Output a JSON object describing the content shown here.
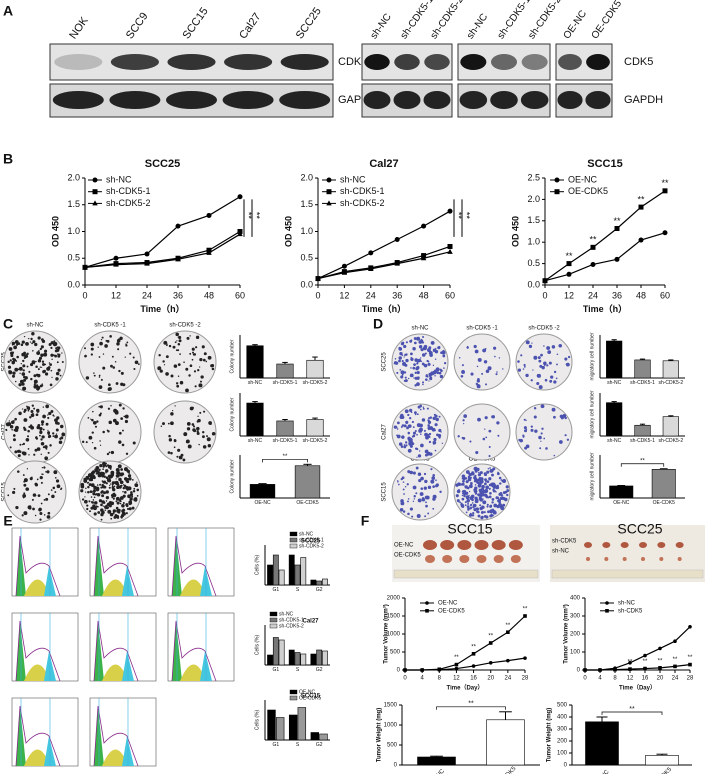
{
  "panel_labels": [
    "A",
    "B",
    "C",
    "D",
    "E",
    "F"
  ],
  "blots": {
    "left_lanes": [
      "NOK",
      "SCC9",
      "SCC15",
      "Cal27",
      "SCC25"
    ],
    "right_lanes": [
      "sh-NC",
      "sh-CDK5-1",
      "sh-CDK5-2",
      "sh-NC",
      "sh-CDK5-1",
      "sh-CDK5-2",
      "OE-NC",
      "OE-CDK5"
    ],
    "proteins": [
      "CDK5",
      "GAPDH"
    ]
  },
  "colony": {
    "columns": [
      "sh-NC",
      "sh-CDK5 -1",
      "sh-CDK5 -2"
    ],
    "oe_columns": [
      "OE-NC",
      "OE-CDK5"
    ],
    "rows": [
      "SCC25",
      "Cal27",
      "SCC15"
    ]
  },
  "migration": {
    "columns": [
      "sh-NC",
      "sh-CDK5 -1",
      "sh-CDK5 -2"
    ],
    "oe_columns": [
      "OE-NC",
      "OE-CDK5"
    ],
    "rows": [
      "SCC25",
      "Cal27",
      "SCC15"
    ]
  },
  "tumor": {
    "titles": [
      "SCC15",
      "SCC25"
    ],
    "left_labels": [
      "OE-NC",
      "OE-CDK5"
    ],
    "right_labels": [
      "sh-CDK5",
      "sh-NC"
    ]
  },
  "chart_data": [
    {
      "type": "line",
      "title": "SCC25",
      "xlabel": "Time（h）",
      "ylabel": "OD 450",
      "x": [
        0,
        12,
        24,
        36,
        48,
        60
      ],
      "xlim": [
        0,
        60
      ],
      "xticks": [
        0,
        12,
        24,
        36,
        48,
        60
      ],
      "ylim": [
        0,
        2
      ],
      "yticks": [
        {
          "value": 0,
          "label": "0.0"
        },
        0.5,
        {
          "value": 1,
          "label": "1.0"
        },
        1.5,
        {
          "value": 2,
          "label": "2.0"
        }
      ],
      "series": [
        {
          "name": "sh-NC",
          "color": "#000000",
          "marker": "circle",
          "values": [
            0.33,
            0.5,
            0.58,
            1.1,
            1.3,
            1.65
          ]
        },
        {
          "name": "sh-CDK5-1",
          "color": "#000000",
          "marker": "square",
          "values": [
            0.33,
            0.4,
            0.42,
            0.5,
            0.65,
            1.0
          ]
        },
        {
          "name": "sh-CDK5-2",
          "color": "#000000",
          "marker": "triangle",
          "values": [
            0.33,
            0.38,
            0.4,
            0.48,
            0.6,
            0.95
          ]
        }
      ],
      "annotations": [
        "**",
        "**"
      ]
    },
    {
      "type": "line",
      "title": "Cal27",
      "xlabel": "Time（h）",
      "ylabel": "OD 450",
      "x": [
        0,
        12,
        24,
        36,
        48,
        60
      ],
      "xlim": [
        0,
        60
      ],
      "xticks": [
        0,
        12,
        24,
        36,
        48,
        60
      ],
      "ylim": [
        0,
        2
      ],
      "yticks": [
        {
          "value": 0,
          "label": "0.0"
        },
        0.5,
        {
          "value": 1,
          "label": "1.0"
        },
        1.5,
        {
          "value": 2,
          "label": "2.0"
        }
      ],
      "series": [
        {
          "name": "sh-NC",
          "color": "#000000",
          "marker": "circle",
          "values": [
            0.12,
            0.35,
            0.6,
            0.85,
            1.1,
            1.38
          ]
        },
        {
          "name": "sh-CDK5-1",
          "color": "#000000",
          "marker": "square",
          "values": [
            0.12,
            0.25,
            0.32,
            0.42,
            0.55,
            0.72
          ]
        },
        {
          "name": "sh-CDK5-2",
          "color": "#000000",
          "marker": "triangle",
          "values": [
            0.12,
            0.23,
            0.3,
            0.4,
            0.5,
            0.62
          ]
        }
      ],
      "annotations": [
        "**",
        "**"
      ]
    },
    {
      "type": "line",
      "title": "SCC15",
      "xlabel": "Time（h）",
      "ylabel": "OD 450",
      "x": [
        0,
        12,
        24,
        36,
        48,
        60
      ],
      "xlim": [
        0,
        60
      ],
      "xticks": [
        0,
        12,
        24,
        36,
        48,
        60
      ],
      "ylim": [
        0,
        2.5
      ],
      "yticks": [
        {
          "value": 0,
          "label": "0.0"
        },
        0.5,
        {
          "value": 1,
          "label": "1.0"
        },
        1.5,
        {
          "value": 2,
          "label": "2.0"
        },
        2.5
      ],
      "series": [
        {
          "name": "OE-NC",
          "color": "#000000",
          "marker": "circle",
          "values": [
            0.1,
            0.25,
            0.48,
            0.6,
            1.05,
            1.22
          ]
        },
        {
          "name": "OE-CDK5",
          "color": "#000000",
          "marker": "square",
          "values": [
            0.1,
            0.5,
            0.88,
            1.32,
            1.82,
            2.2
          ]
        }
      ],
      "annotations": [
        "**",
        "**",
        "**",
        "**",
        "**"
      ]
    },
    {
      "type": "bar",
      "ylabel": "Colony number",
      "categories": [
        "sh-NC",
        "sh-CDK5-1",
        "sh-CDK5-2"
      ],
      "values": [
        300,
        130,
        165
      ],
      "errors": [
        10,
        15,
        30
      ],
      "colors": [
        "#000000",
        "#888888",
        "#d9d9d9"
      ],
      "ylim": [
        0,
        400
      ]
    },
    {
      "type": "bar",
      "ylabel": "Colony number",
      "categories": [
        "sh-NC",
        "sh-CDK5-1",
        "sh-CDK5-2"
      ],
      "values": [
        230,
        105,
        115
      ],
      "errors": [
        10,
        10,
        10
      ],
      "colors": [
        "#000000",
        "#888888",
        "#d9d9d9"
      ],
      "ylim": [
        0,
        300
      ]
    },
    {
      "type": "bar",
      "ylabel": "Colony number",
      "categories": [
        "OE-NC",
        "OE-CDK5"
      ],
      "values": [
        190,
        450
      ],
      "errors": [
        10,
        20
      ],
      "colors": [
        "#000000",
        "#888888"
      ],
      "ylim": [
        0,
        600
      ],
      "annotations": [
        "**"
      ]
    },
    {
      "type": "bar",
      "ylabel": "migratory cell number",
      "categories": [
        "sh-NC",
        "sh-CDK5-1",
        "sh-CDK5-2"
      ],
      "values": [
        430,
        210,
        200
      ],
      "errors": [
        15,
        10,
        10
      ],
      "colors": [
        "#000000",
        "#888888",
        "#d9d9d9"
      ],
      "ylim": [
        0,
        500
      ]
    },
    {
      "type": "bar",
      "ylabel": "migratory cell number",
      "categories": [
        "sh-NC",
        "sh-CDK5-1",
        "sh-CDK5-2"
      ],
      "values": [
        310,
        100,
        180
      ],
      "errors": [
        10,
        10,
        8
      ],
      "colors": [
        "#000000",
        "#888888",
        "#d9d9d9"
      ],
      "ylim": [
        0,
        400
      ]
    },
    {
      "type": "bar",
      "ylabel": "migratory cell number",
      "categories": [
        "OE-NC",
        "OE-CDK5"
      ],
      "values": [
        420,
        1000
      ],
      "errors": [
        15,
        20
      ],
      "colors": [
        "#000000",
        "#888888"
      ],
      "ylim": [
        0,
        1500
      ],
      "annotations": [
        "**"
      ]
    },
    {
      "type": "grouped-bar",
      "title": "SCC25",
      "ylabel": "Cells (%)",
      "categories": [
        "G1",
        "S",
        "G2"
      ],
      "ylim": [
        0,
        80
      ],
      "series": [
        {
          "name": "sh-NC",
          "color": "#000000",
          "values": [
            40,
            60,
            10
          ]
        },
        {
          "name": "sh-CDK5-1",
          "color": "#777777",
          "values": [
            60,
            40,
            8
          ]
        },
        {
          "name": "sh-CDK5-2",
          "color": "#d0d0d0",
          "values": [
            30,
            55,
            12
          ]
        }
      ]
    },
    {
      "type": "grouped-bar",
      "title": "Cal27",
      "ylabel": "Cells (%)",
      "categories": [
        "G1",
        "S",
        "G2"
      ],
      "ylim": [
        0,
        80
      ],
      "series": [
        {
          "name": "sh-NC",
          "color": "#000000",
          "values": [
            20,
            30,
            22
          ]
        },
        {
          "name": "sh-CDK5-1",
          "color": "#777777",
          "values": [
            55,
            25,
            30
          ]
        },
        {
          "name": "sh-CDK5-2",
          "color": "#d0d0d0",
          "values": [
            50,
            22,
            28
          ]
        }
      ]
    },
    {
      "type": "grouped-bar",
      "title": "SCC15",
      "ylabel": "Cells (%)",
      "categories": [
        "G1",
        "S",
        "G2"
      ],
      "ylim": [
        0,
        80
      ],
      "series": [
        {
          "name": "OE-NC",
          "color": "#000000",
          "values": [
            60,
            50,
            15
          ]
        },
        {
          "name": "OE-CDK5",
          "color": "#999999",
          "values": [
            45,
            65,
            12
          ]
        }
      ]
    },
    {
      "type": "line",
      "xlabel": "Time（Day）",
      "ylabel": "Tumor Volume (mm³)",
      "x": [
        0,
        4,
        8,
        12,
        16,
        20,
        24,
        28
      ],
      "xlim": [
        0,
        28
      ],
      "xticks": [
        0,
        4,
        8,
        12,
        16,
        20,
        24,
        28
      ],
      "ylim": [
        0,
        2000
      ],
      "yticks": [
        0,
        500,
        1000,
        1500,
        2000
      ],
      "series": [
        {
          "name": "OE-NC",
          "color": "#000000",
          "marker": "circle",
          "values": [
            0,
            0,
            5,
            40,
            110,
            200,
            260,
            330
          ]
        },
        {
          "name": "OE-CDK5",
          "color": "#000000",
          "marker": "square",
          "values": [
            0,
            0,
            20,
            150,
            450,
            750,
            1050,
            1500
          ]
        }
      ],
      "annotations": [
        "**",
        "**",
        "**",
        "**",
        "**"
      ]
    },
    {
      "type": "line",
      "xlabel": "Time（Day）",
      "ylabel": "Tumor Volume (mm³)",
      "x": [
        0,
        4,
        8,
        12,
        16,
        20,
        24,
        28
      ],
      "xlim": [
        0,
        28
      ],
      "xticks": [
        0,
        4,
        8,
        12,
        16,
        20,
        24,
        28
      ],
      "ylim": [
        0,
        400
      ],
      "yticks": [
        0,
        100,
        200,
        300,
        400
      ],
      "series": [
        {
          "name": "sh-NC",
          "color": "#000000",
          "marker": "circle",
          "values": [
            0,
            0,
            10,
            40,
            80,
            120,
            160,
            240
          ]
        },
        {
          "name": "sh-CDK5",
          "color": "#000000",
          "marker": "square",
          "values": [
            0,
            0,
            2,
            5,
            8,
            12,
            20,
            30
          ]
        }
      ],
      "annotations": [
        "**",
        "**",
        "**",
        "**",
        "**"
      ]
    },
    {
      "type": "bar",
      "ylabel": "Tumor Weight (mg)",
      "categories": [
        "OE-NC",
        "OE-CDK5"
      ],
      "values": [
        200,
        1130
      ],
      "errors": [
        20,
        200
      ],
      "colors": [
        "#000000",
        "#ffffff"
      ],
      "ylim": [
        0,
        1500
      ],
      "yticks": [
        0,
        500,
        1000,
        1500
      ],
      "annotations": [
        "**"
      ]
    },
    {
      "type": "bar",
      "ylabel": "Tumor Weight (mg)",
      "categories": [
        "sh-NC",
        "sh-CDK5"
      ],
      "values": [
        360,
        80
      ],
      "errors": [
        40,
        10
      ],
      "colors": [
        "#000000",
        "#ffffff"
      ],
      "ylim": [
        0,
        500
      ],
      "yticks": [
        0,
        100,
        200,
        300,
        400,
        500
      ],
      "annotations": [
        "**"
      ]
    }
  ]
}
